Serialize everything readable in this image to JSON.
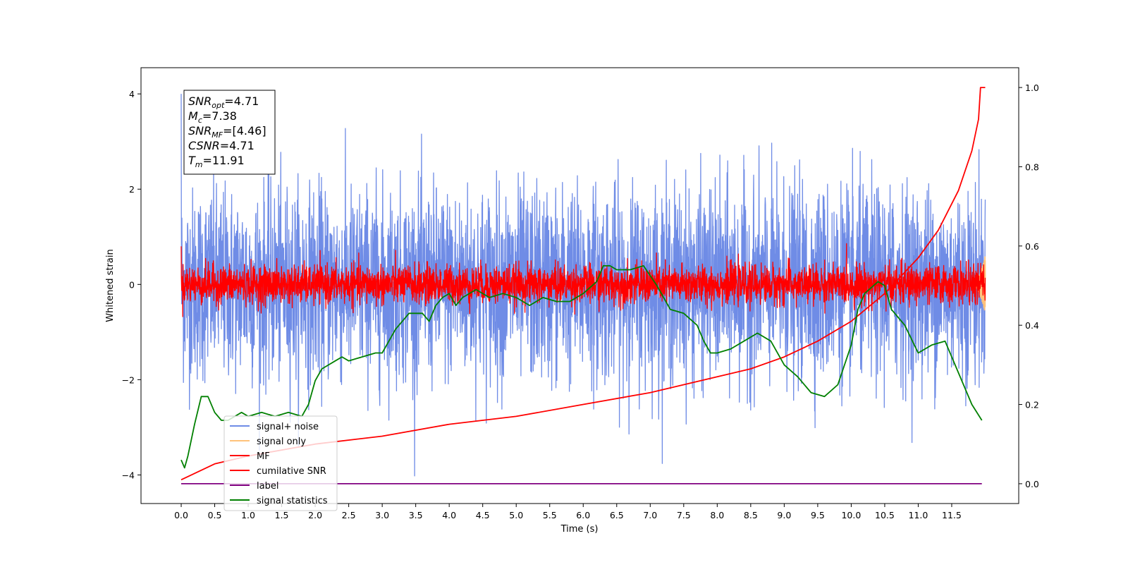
{
  "chart_data": {
    "type": "line",
    "xlabel": "Time (s)",
    "ylabel": "Whitened strain",
    "xlim": [
      -0.6,
      12.5
    ],
    "ylim": [
      -4.6,
      4.55
    ],
    "y2lim": [
      -0.05,
      1.05
    ],
    "x_ticks": [
      "0.0",
      "0.5",
      "1.0",
      "1.5",
      "2.0",
      "2.5",
      "3.0",
      "3.5",
      "4.0",
      "4.5",
      "5.0",
      "5.5",
      "6.0",
      "6.5",
      "7.0",
      "7.5",
      "8.0",
      "8.5",
      "9.0",
      "9.5",
      "10.0",
      "10.5",
      "11.0",
      "11.5"
    ],
    "y_ticks": [
      "−4",
      "−2",
      "0",
      "2",
      "4"
    ],
    "y2_ticks": [
      "0.0",
      "0.2",
      "0.4",
      "0.6",
      "0.8",
      "1.0"
    ],
    "legend_position": "lower-left",
    "info_box": {
      "lines": [
        {
          "sym": "SNR",
          "sub": "opt",
          "val": "=4.71"
        },
        {
          "sym": "M",
          "sub": "c",
          "val": "=7.38"
        },
        {
          "sym": "SNR",
          "sub": "MF",
          "val": "=[4.46]"
        },
        {
          "sym": "CSNR",
          "sub": "",
          "val": "=4.71"
        },
        {
          "sym": "T",
          "sub": "m",
          "val": "=11.91"
        }
      ]
    },
    "series": [
      {
        "name": "signal+ noise",
        "color": "#6f8ce6",
        "axis": "left",
        "kind": "noise",
        "sigma": 1.0,
        "t_end": 12.0
      },
      {
        "name": "signal only",
        "color": "#ffc27a",
        "axis": "left",
        "kind": "chirp",
        "t_end": 12.0
      },
      {
        "name": "MF",
        "color": "#ff0000",
        "axis": "left",
        "kind": "noise",
        "sigma": 0.2,
        "t_end": 12.0
      },
      {
        "name": "cumilative SNR",
        "color": "#ff0000",
        "axis": "right",
        "x": [
          0.0,
          0.5,
          1.0,
          2.0,
          3.0,
          4.0,
          5.0,
          6.0,
          7.0,
          8.0,
          8.5,
          9.0,
          9.5,
          10.0,
          10.5,
          11.0,
          11.3,
          11.6,
          11.8,
          11.9,
          11.93,
          12.0
        ],
        "y": [
          0.01,
          0.05,
          0.07,
          0.1,
          0.12,
          0.15,
          0.17,
          0.2,
          0.23,
          0.27,
          0.29,
          0.32,
          0.36,
          0.41,
          0.48,
          0.57,
          0.64,
          0.74,
          0.84,
          0.92,
          1.0,
          1.0
        ]
      },
      {
        "name": "label",
        "color": "#800080",
        "axis": "right",
        "x": [
          0.0,
          11.95
        ],
        "y": [
          0.0,
          0.0
        ]
      },
      {
        "name": "signal statistics",
        "color": "#008000",
        "axis": "right",
        "x": [
          0.0,
          0.05,
          0.1,
          0.2,
          0.3,
          0.4,
          0.5,
          0.6,
          0.7,
          0.8,
          0.9,
          1.0,
          1.2,
          1.4,
          1.6,
          1.8,
          1.9,
          2.0,
          2.1,
          2.2,
          2.3,
          2.4,
          2.5,
          2.7,
          2.9,
          3.0,
          3.1,
          3.2,
          3.4,
          3.6,
          3.7,
          3.8,
          3.9,
          4.0,
          4.1,
          4.2,
          4.4,
          4.6,
          4.8,
          5.0,
          5.2,
          5.4,
          5.6,
          5.8,
          6.0,
          6.2,
          6.3,
          6.4,
          6.5,
          6.7,
          6.9,
          7.1,
          7.3,
          7.5,
          7.7,
          7.8,
          7.9,
          8.0,
          8.2,
          8.4,
          8.6,
          8.8,
          9.0,
          9.2,
          9.4,
          9.6,
          9.8,
          10.0,
          10.1,
          10.2,
          10.4,
          10.5,
          10.6,
          10.8,
          11.0,
          11.2,
          11.4,
          11.6,
          11.8,
          11.95
        ],
        "y": [
          0.06,
          0.04,
          0.07,
          0.15,
          0.22,
          0.22,
          0.18,
          0.16,
          0.16,
          0.17,
          0.18,
          0.17,
          0.18,
          0.17,
          0.18,
          0.17,
          0.2,
          0.26,
          0.29,
          0.3,
          0.31,
          0.32,
          0.31,
          0.32,
          0.33,
          0.33,
          0.36,
          0.39,
          0.43,
          0.43,
          0.41,
          0.45,
          0.47,
          0.48,
          0.45,
          0.47,
          0.49,
          0.47,
          0.48,
          0.47,
          0.45,
          0.47,
          0.46,
          0.46,
          0.48,
          0.51,
          0.55,
          0.55,
          0.54,
          0.54,
          0.55,
          0.5,
          0.44,
          0.43,
          0.4,
          0.36,
          0.33,
          0.33,
          0.34,
          0.36,
          0.38,
          0.36,
          0.3,
          0.27,
          0.23,
          0.22,
          0.25,
          0.35,
          0.44,
          0.48,
          0.51,
          0.5,
          0.44,
          0.4,
          0.33,
          0.35,
          0.36,
          0.28,
          0.2,
          0.16
        ]
      }
    ]
  }
}
